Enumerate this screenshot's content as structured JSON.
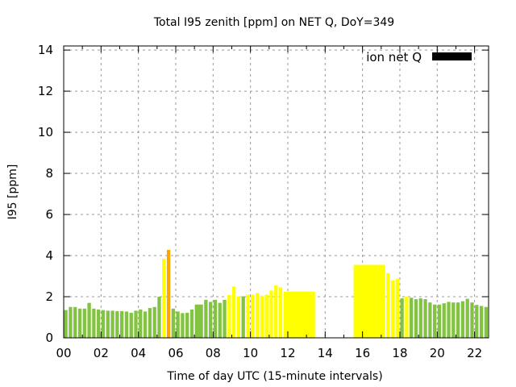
{
  "chart_data": {
    "type": "bar",
    "title": "Total I95 zenith [ppm] on NET Q, DoY=349",
    "xlabel": "Time of day UTC (15-minute intervals)",
    "ylabel": "I95 [ppm]",
    "ylim": [
      0,
      14.2
    ],
    "xlim": [
      0,
      22.75
    ],
    "yticks": [
      "0",
      "2",
      "4",
      "6",
      "8",
      "10",
      "12",
      "14"
    ],
    "xticks": [
      "00",
      "02",
      "04",
      "06",
      "08",
      "10",
      "12",
      "14",
      "16",
      "18",
      "20",
      "22"
    ],
    "grid": true,
    "legend": {
      "label": "ion net Q",
      "position": "top-right",
      "color": "#000000"
    },
    "colors": {
      "green": "#82c341",
      "yellow": "#ffff00",
      "orange": "#ffa500"
    },
    "bars": [
      {
        "t": 0.0,
        "w": 0.25,
        "v": 1.35,
        "c": "green"
      },
      {
        "t": 0.25,
        "w": 0.25,
        "v": 1.5,
        "c": "green"
      },
      {
        "t": 0.5,
        "w": 0.25,
        "v": 1.5,
        "c": "green"
      },
      {
        "t": 0.75,
        "w": 0.25,
        "v": 1.42,
        "c": "green"
      },
      {
        "t": 1.0,
        "w": 0.25,
        "v": 1.42,
        "c": "green"
      },
      {
        "t": 1.25,
        "w": 0.25,
        "v": 1.7,
        "c": "green"
      },
      {
        "t": 1.5,
        "w": 0.25,
        "v": 1.42,
        "c": "green"
      },
      {
        "t": 1.75,
        "w": 0.25,
        "v": 1.38,
        "c": "green"
      },
      {
        "t": 2.0,
        "w": 0.25,
        "v": 1.35,
        "c": "green"
      },
      {
        "t": 2.25,
        "w": 0.25,
        "v": 1.32,
        "c": "green"
      },
      {
        "t": 2.5,
        "w": 0.25,
        "v": 1.32,
        "c": "green"
      },
      {
        "t": 2.75,
        "w": 0.25,
        "v": 1.3,
        "c": "green"
      },
      {
        "t": 3.0,
        "w": 0.25,
        "v": 1.3,
        "c": "green"
      },
      {
        "t": 3.25,
        "w": 0.25,
        "v": 1.28,
        "c": "green"
      },
      {
        "t": 3.5,
        "w": 0.25,
        "v": 1.22,
        "c": "green"
      },
      {
        "t": 3.75,
        "w": 0.25,
        "v": 1.32,
        "c": "green"
      },
      {
        "t": 4.0,
        "w": 0.25,
        "v": 1.38,
        "c": "green"
      },
      {
        "t": 4.25,
        "w": 0.25,
        "v": 1.28,
        "c": "green"
      },
      {
        "t": 4.5,
        "w": 0.25,
        "v": 1.45,
        "c": "green"
      },
      {
        "t": 4.75,
        "w": 0.25,
        "v": 1.5,
        "c": "green"
      },
      {
        "t": 5.0,
        "w": 0.25,
        "v": 2.0,
        "c": "green"
      },
      {
        "t": 5.25,
        "w": 0.25,
        "v": 3.85,
        "c": "yellow"
      },
      {
        "t": 5.5,
        "w": 0.25,
        "v": 4.28,
        "c": "orange"
      },
      {
        "t": 5.75,
        "w": 0.25,
        "v": 1.42,
        "c": "green"
      },
      {
        "t": 6.0,
        "w": 0.25,
        "v": 1.28,
        "c": "green"
      },
      {
        "t": 6.25,
        "w": 0.25,
        "v": 1.2,
        "c": "green"
      },
      {
        "t": 6.5,
        "w": 0.25,
        "v": 1.22,
        "c": "green"
      },
      {
        "t": 6.75,
        "w": 0.25,
        "v": 1.38,
        "c": "green"
      },
      {
        "t": 7.0,
        "w": 0.5,
        "v": 1.62,
        "c": "green"
      },
      {
        "t": 7.5,
        "w": 0.25,
        "v": 1.85,
        "c": "green"
      },
      {
        "t": 7.75,
        "w": 0.25,
        "v": 1.75,
        "c": "green"
      },
      {
        "t": 8.0,
        "w": 0.25,
        "v": 1.85,
        "c": "green"
      },
      {
        "t": 8.25,
        "w": 0.25,
        "v": 1.7,
        "c": "green"
      },
      {
        "t": 8.5,
        "w": 0.25,
        "v": 1.85,
        "c": "green"
      },
      {
        "t": 8.75,
        "w": 0.25,
        "v": 2.08,
        "c": "yellow"
      },
      {
        "t": 9.0,
        "w": 0.25,
        "v": 2.5,
        "c": "yellow"
      },
      {
        "t": 9.25,
        "w": 0.25,
        "v": 2.02,
        "c": "yellow"
      },
      {
        "t": 9.5,
        "w": 0.25,
        "v": 2.02,
        "c": "green"
      },
      {
        "t": 9.75,
        "w": 0.25,
        "v": 2.1,
        "c": "yellow"
      },
      {
        "t": 10.0,
        "w": 0.25,
        "v": 2.1,
        "c": "yellow"
      },
      {
        "t": 10.25,
        "w": 0.25,
        "v": 2.18,
        "c": "yellow"
      },
      {
        "t": 10.5,
        "w": 0.25,
        "v": 2.05,
        "c": "yellow"
      },
      {
        "t": 10.75,
        "w": 0.25,
        "v": 2.1,
        "c": "yellow"
      },
      {
        "t": 11.0,
        "w": 0.25,
        "v": 2.3,
        "c": "yellow"
      },
      {
        "t": 11.25,
        "w": 0.25,
        "v": 2.55,
        "c": "yellow"
      },
      {
        "t": 11.5,
        "w": 0.25,
        "v": 2.45,
        "c": "yellow"
      },
      {
        "t": 11.75,
        "w": 1.75,
        "v": 2.25,
        "c": "yellow"
      },
      {
        "t": 15.5,
        "w": 1.75,
        "v": 3.55,
        "c": "yellow"
      },
      {
        "t": 17.25,
        "w": 0.25,
        "v": 3.15,
        "c": "yellow"
      },
      {
        "t": 17.5,
        "w": 0.25,
        "v": 2.8,
        "c": "yellow"
      },
      {
        "t": 17.75,
        "w": 0.25,
        "v": 2.88,
        "c": "yellow"
      },
      {
        "t": 18.0,
        "w": 0.25,
        "v": 1.92,
        "c": "green"
      },
      {
        "t": 18.25,
        "w": 0.25,
        "v": 2.0,
        "c": "yellow"
      },
      {
        "t": 18.5,
        "w": 0.25,
        "v": 1.95,
        "c": "green"
      },
      {
        "t": 18.75,
        "w": 0.25,
        "v": 1.88,
        "c": "green"
      },
      {
        "t": 19.0,
        "w": 0.25,
        "v": 1.92,
        "c": "green"
      },
      {
        "t": 19.25,
        "w": 0.25,
        "v": 1.88,
        "c": "green"
      },
      {
        "t": 19.5,
        "w": 0.25,
        "v": 1.72,
        "c": "green"
      },
      {
        "t": 19.75,
        "w": 0.25,
        "v": 1.62,
        "c": "green"
      },
      {
        "t": 20.0,
        "w": 0.25,
        "v": 1.62,
        "c": "green"
      },
      {
        "t": 20.25,
        "w": 0.25,
        "v": 1.68,
        "c": "green"
      },
      {
        "t": 20.5,
        "w": 0.25,
        "v": 1.75,
        "c": "green"
      },
      {
        "t": 20.75,
        "w": 0.25,
        "v": 1.72,
        "c": "green"
      },
      {
        "t": 21.0,
        "w": 0.25,
        "v": 1.72,
        "c": "green"
      },
      {
        "t": 21.25,
        "w": 0.25,
        "v": 1.78,
        "c": "green"
      },
      {
        "t": 21.5,
        "w": 0.25,
        "v": 1.9,
        "c": "green"
      },
      {
        "t": 21.75,
        "w": 0.25,
        "v": 1.72,
        "c": "green"
      },
      {
        "t": 22.0,
        "w": 0.25,
        "v": 1.6,
        "c": "green"
      },
      {
        "t": 22.25,
        "w": 0.25,
        "v": 1.55,
        "c": "green"
      },
      {
        "t": 22.5,
        "w": 0.25,
        "v": 1.5,
        "c": "green"
      }
    ]
  }
}
